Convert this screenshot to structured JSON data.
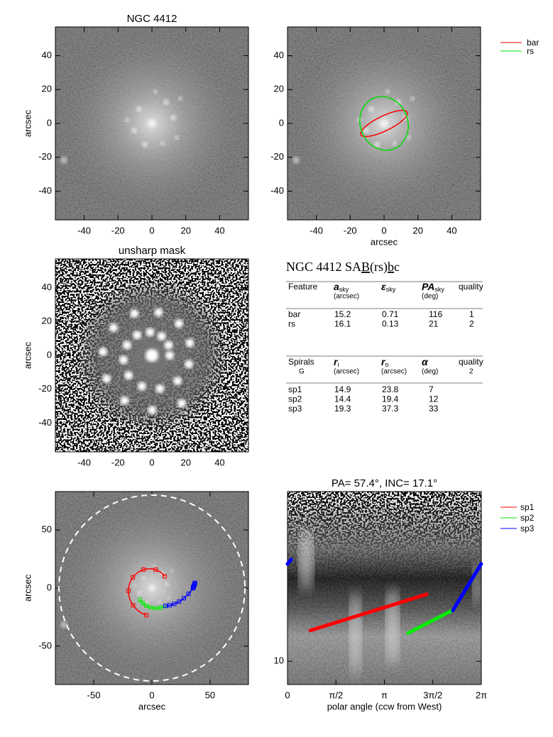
{
  "panels": [
    {
      "title": "NGC 4412",
      "ylabel": "arcsec",
      "xlim": [
        -57,
        57
      ],
      "ylim": [
        -57,
        57
      ],
      "xticks": [
        -40,
        -20,
        0,
        20,
        40
      ],
      "yticks": [
        -40,
        -20,
        0,
        20,
        40
      ]
    },
    {
      "xlabel": "arcsec",
      "xlim": [
        -57,
        57
      ],
      "ylim": [
        -57,
        57
      ],
      "xticks": [
        -40,
        -20,
        0,
        20,
        40
      ],
      "yticks": [
        -40,
        -20,
        0,
        20,
        40
      ],
      "legend": [
        {
          "name": "bar",
          "color": "#ff0000"
        },
        {
          "name": "rs",
          "color": "#00dd00"
        }
      ]
    },
    {
      "title": "unsharp mask",
      "ylabel": "arcsec",
      "xlim": [
        -57,
        57
      ],
      "ylim": [
        -57,
        57
      ],
      "xticks": [
        -40,
        -20,
        0,
        20,
        40
      ],
      "yticks": [
        -40,
        -20,
        0,
        20,
        40
      ]
    },
    {
      "xlabel": "arcsec",
      "ylabel": "arcsec",
      "xlim": [
        -83,
        83
      ],
      "ylim": [
        -83,
        83
      ],
      "xticks": [
        -50,
        0,
        50
      ],
      "yticks": [
        -50,
        0,
        50
      ]
    },
    {
      "title": "PA=  57.4°, INC=  17.1°",
      "xlabel": "polar angle (ccw from West)",
      "xlim": [
        0,
        6.2832
      ],
      "ylim": [
        7.4,
        90
      ],
      "ylog": true,
      "xticks": [
        0,
        {
          "value": 1.5708,
          "label": "π/2"
        },
        {
          "value": 3.1416,
          "label": "π"
        },
        {
          "value": 4.7124,
          "label": "3π/2"
        },
        {
          "value": 6.2832,
          "label": "2π"
        }
      ],
      "yticks": [
        10
      ],
      "series": [
        {
          "name": "sp1",
          "color": "#ff0000",
          "theta": [
            0.74,
            4.51
          ],
          "r": [
            14.9,
            23.8
          ]
        },
        {
          "name": "sp2",
          "color": "#00ee00",
          "theta": [
            3.91,
            5.36
          ],
          "r": [
            14.4,
            19.4
          ]
        },
        {
          "name": "sp3",
          "color": "#0000ff",
          "theta": [
            5.36,
            6.28,
            null,
            0,
            0.12
          ],
          "r": [
            19.3,
            35.3,
            null,
            35.3,
            37.3
          ]
        }
      ]
    }
  ],
  "table": {
    "title": [
      "NGC 4412  SA",
      "B",
      "(rs)",
      "b",
      "c"
    ],
    "features": {
      "header": [
        {
          "text": "Feature"
        },
        {
          "symbol": "a",
          "sub": "sky",
          "unit": "(arcsec)"
        },
        {
          "symbol": "ε",
          "sub": "sky"
        },
        {
          "symbol": "PA",
          "sub": "sky",
          "unit": "(deg)"
        },
        {
          "text": "quality"
        }
      ],
      "rows": [
        [
          "bar",
          "15.2",
          "0.71",
          "116",
          "1"
        ],
        [
          "rs",
          "16.1",
          "0.13",
          "21",
          "2"
        ]
      ]
    },
    "spirals": {
      "header": [
        {
          "text": "Spirals",
          "unit": "G"
        },
        {
          "symbol": "r",
          "sub": "i",
          "unit": "(arcsec)"
        },
        {
          "symbol": "r",
          "sub": "o",
          "unit": "(arcsec)"
        },
        {
          "symbol": "α",
          "unit": "(deg)"
        },
        {
          "text": "quality",
          "unit": "2"
        }
      ],
      "rows": [
        [
          "sp1",
          "14.9",
          "23.8",
          "7"
        ],
        [
          "sp2",
          "14.4",
          "19.4",
          "12"
        ],
        [
          "sp3",
          "19.3",
          "37.3",
          "33"
        ]
      ]
    }
  }
}
